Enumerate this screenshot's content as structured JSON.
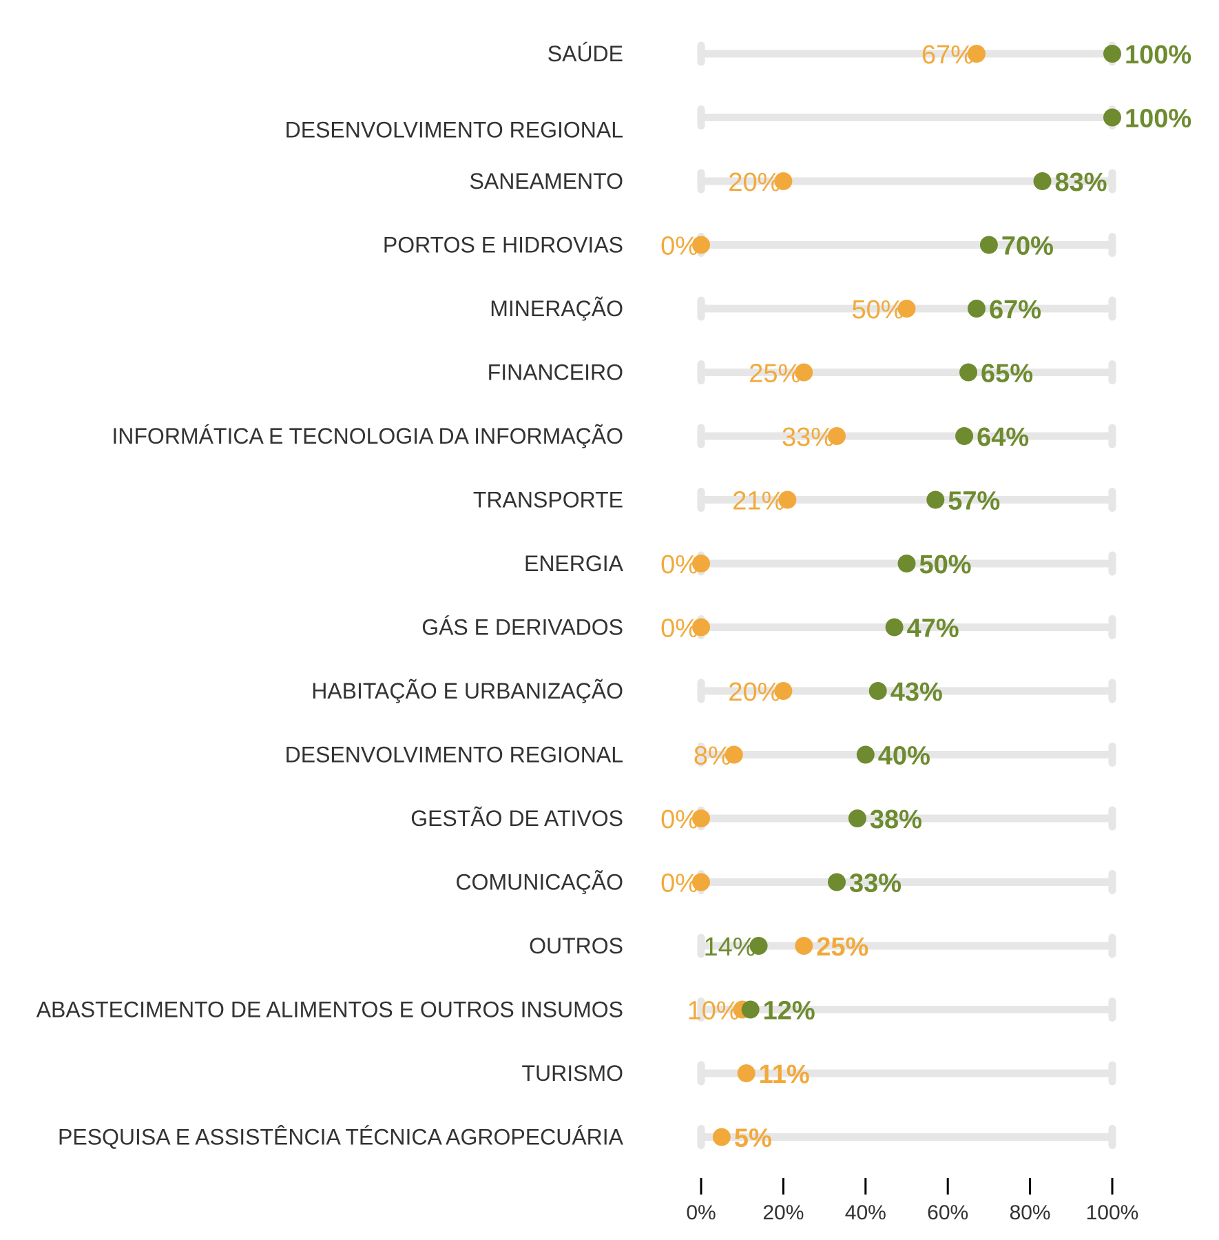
{
  "colors": {
    "green": "#6e8b2f",
    "orange": "#f2a93b",
    "track": "#e6e6e6",
    "axis": "#000000",
    "text": "#333333"
  },
  "chart_data": {
    "type": "dumbbell",
    "xlim": [
      0,
      100
    ],
    "x_ticks": [
      0,
      20,
      40,
      60,
      80,
      100
    ],
    "x_tick_labels": [
      "0%",
      "20%",
      "40%",
      "60%",
      "80%",
      "100%"
    ],
    "series": [
      {
        "key": "green",
        "color": "#6e8b2f"
      },
      {
        "key": "orange",
        "color": "#f2a93b"
      }
    ],
    "rows": [
      {
        "category": "SAÚDE",
        "green": 100,
        "orange": 67,
        "green_label": "100%",
        "orange_label": "67%"
      },
      {
        "category": "DESENVOLVIMENTO REGIONAL",
        "green": 100,
        "orange": null,
        "green_label": "100%",
        "orange_label": null
      },
      {
        "category": "SANEAMENTO",
        "green": 83,
        "orange": 20,
        "green_label": "83%",
        "orange_label": "20%"
      },
      {
        "category": "PORTOS E HIDROVIAS",
        "green": 70,
        "orange": 0,
        "green_label": "70%",
        "orange_label": "0%"
      },
      {
        "category": "MINERAÇÃO",
        "green": 67,
        "orange": 50,
        "green_label": "67%",
        "orange_label": "50%"
      },
      {
        "category": "FINANCEIRO",
        "green": 65,
        "orange": 25,
        "green_label": "65%",
        "orange_label": "25%"
      },
      {
        "category": "INFORMÁTICA E TECNOLOGIA DA INFORMAÇÃO",
        "green": 64,
        "orange": 33,
        "green_label": "64%",
        "orange_label": "33%"
      },
      {
        "category": "TRANSPORTE",
        "green": 57,
        "orange": 21,
        "green_label": "57%",
        "orange_label": "21%"
      },
      {
        "category": "ENERGIA",
        "green": 50,
        "orange": 0,
        "green_label": "50%",
        "orange_label": "0%"
      },
      {
        "category": "GÁS E DERIVADOS",
        "green": 47,
        "orange": 0,
        "green_label": "47%",
        "orange_label": "0%"
      },
      {
        "category": "HABITAÇÃO E URBANIZAÇÃO",
        "green": 43,
        "orange": 20,
        "green_label": "43%",
        "orange_label": "20%"
      },
      {
        "category": "DESENVOLVIMENTO REGIONAL",
        "green": 40,
        "orange": 8,
        "green_label": "40%",
        "orange_label": "8%"
      },
      {
        "category": "GESTÃO DE ATIVOS",
        "green": 38,
        "orange": 0,
        "green_label": "38%",
        "orange_label": "0%"
      },
      {
        "category": "COMUNICAÇÃO",
        "green": 33,
        "orange": 0,
        "green_label": "33%",
        "orange_label": "0%"
      },
      {
        "category": "OUTROS",
        "green": 14,
        "orange": 25,
        "green_label": "14%",
        "orange_label": "25%"
      },
      {
        "category": "ABASTECIMENTO DE ALIMENTOS E OUTROS INSUMOS",
        "green": 12,
        "orange": 10,
        "green_label": "12%",
        "orange_label": "10%"
      },
      {
        "category": "TURISMO",
        "green": null,
        "orange": 11,
        "green_label": null,
        "orange_label": "11%"
      },
      {
        "category": "PESQUISA E ASSISTÊNCIA TÉCNICA AGROPECUÁRIA",
        "green": null,
        "orange": 5,
        "green_label": null,
        "orange_label": "5%"
      }
    ]
  }
}
